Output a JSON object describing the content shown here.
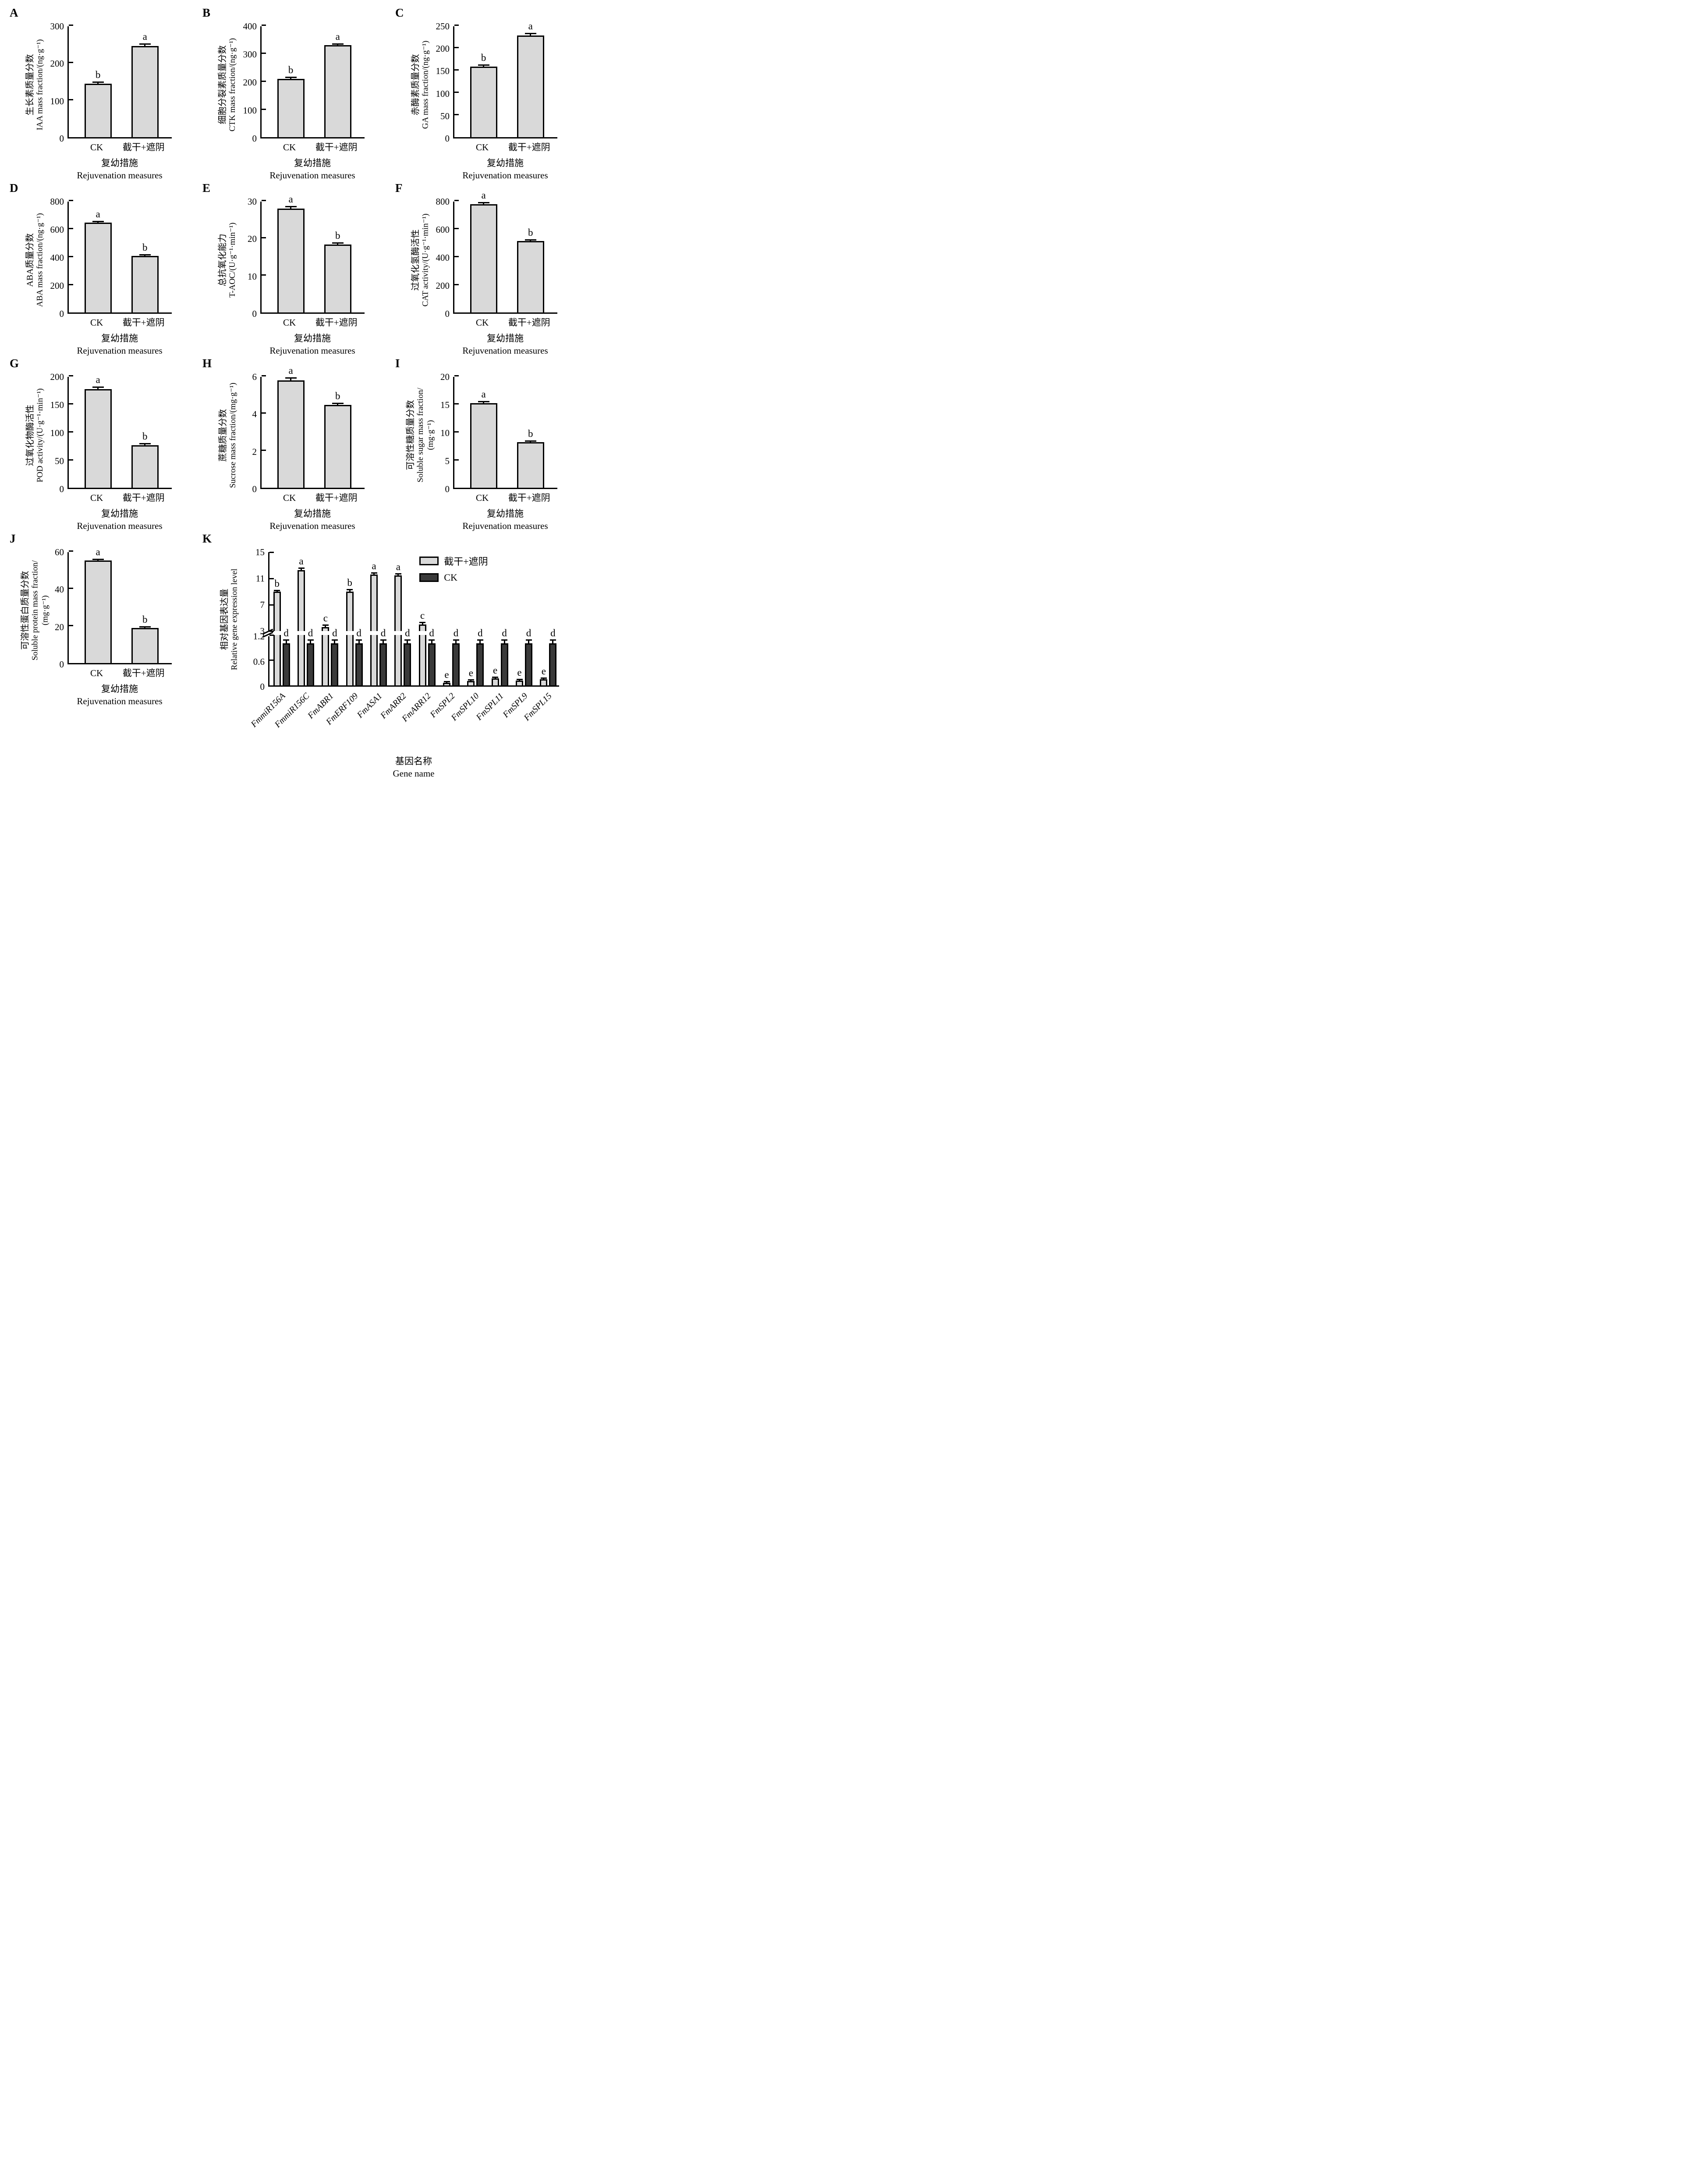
{
  "figure": {
    "background": "#ffffff",
    "bar_fill_light": "#d9d9d9",
    "bar_fill_dark": "#3a3a3a",
    "axis_color": "#000000",
    "legend": {
      "position": "top-right-of-panel-K",
      "items": [
        {
          "label": "截干+遮阴",
          "swatch": "light"
        },
        {
          "label": "CK",
          "swatch": "dark"
        }
      ]
    }
  },
  "chart_data": [
    {
      "panel": "A",
      "type": "bar",
      "ylabel_zh": "生长素质量分数",
      "ylabel_en": "IAA mass fraction/(ng·g⁻¹)",
      "categories": [
        "CK",
        "截干+遮阴"
      ],
      "values": [
        143,
        244
      ],
      "errors": [
        3,
        4
      ],
      "sig_letters": [
        "b",
        "a"
      ],
      "ylim": [
        0,
        300
      ],
      "yticks": [
        0,
        100,
        200,
        300
      ],
      "xlabel_zh": "复幼措施",
      "xlabel_en": "Rejuvenation measures",
      "grid": false
    },
    {
      "panel": "B",
      "type": "bar",
      "ylabel_zh": "细胞分裂素质量分数",
      "ylabel_en": "CTK mass fraction/(ng·g⁻¹)",
      "categories": [
        "CK",
        "截干+遮阴"
      ],
      "values": [
        208,
        328
      ],
      "errors": [
        4,
        4
      ],
      "sig_letters": [
        "b",
        "a"
      ],
      "ylim": [
        0,
        400
      ],
      "yticks": [
        0,
        100,
        200,
        300,
        400
      ],
      "xlabel_zh": "复幼措施",
      "xlabel_en": "Rejuvenation measures",
      "grid": false
    },
    {
      "panel": "C",
      "type": "bar",
      "ylabel_zh": "赤酶素质量分数",
      "ylabel_en": "GA mass fraction/(ng·g⁻¹)",
      "categories": [
        "CK",
        "截干+遮阴"
      ],
      "values": [
        157,
        227
      ],
      "errors": [
        3,
        3
      ],
      "sig_letters": [
        "b",
        "a"
      ],
      "ylim": [
        0,
        250
      ],
      "yticks": [
        0,
        50,
        100,
        150,
        200,
        250
      ],
      "xlabel_zh": "复幼措施",
      "xlabel_en": "Rejuvenation measures",
      "grid": false
    },
    {
      "panel": "D",
      "type": "bar",
      "ylabel_zh": "ABA质量分数",
      "ylabel_en": "ABA mass fraction/(ng·g⁻¹)",
      "categories": [
        "CK",
        "截干+遮阴"
      ],
      "values": [
        640,
        403
      ],
      "errors": [
        6,
        5
      ],
      "sig_letters": [
        "a",
        "b"
      ],
      "ylim": [
        0,
        800
      ],
      "yticks": [
        0,
        200,
        400,
        600,
        800
      ],
      "xlabel_zh": "复幼措施",
      "xlabel_en": "Rejuvenation measures",
      "grid": false
    },
    {
      "panel": "E",
      "type": "bar",
      "ylabel_zh": "总抗氧化能力",
      "ylabel_en": "T-AOC/(U·g⁻¹·min⁻¹)",
      "categories": [
        "CK",
        "截干+遮阴"
      ],
      "values": [
        27.8,
        18.2
      ],
      "errors": [
        0.5,
        0.3
      ],
      "sig_letters": [
        "a",
        "b"
      ],
      "ylim": [
        0,
        30
      ],
      "yticks": [
        0,
        10,
        20,
        30
      ],
      "xlabel_zh": "复幼措施",
      "xlabel_en": "Rejuvenation measures",
      "grid": false
    },
    {
      "panel": "F",
      "type": "bar",
      "ylabel_zh": "过氧化氢酶活性",
      "ylabel_en": "CAT activity/(U·g⁻¹·min⁻¹)",
      "categories": [
        "CK",
        "截干+遮阴"
      ],
      "values": [
        773,
        508
      ],
      "errors": [
        8,
        7
      ],
      "sig_letters": [
        "a",
        "b"
      ],
      "ylim": [
        0,
        800
      ],
      "yticks": [
        0,
        200,
        400,
        600,
        800
      ],
      "xlabel_zh": "复幼措施",
      "xlabel_en": "Rejuvenation measures",
      "grid": false
    },
    {
      "panel": "G",
      "type": "bar",
      "ylabel_zh": "过氧化物酶活性",
      "ylabel_en": "POD activity/(U·g⁻¹·min⁻¹)",
      "categories": [
        "CK",
        "截干+遮阴"
      ],
      "values": [
        176,
        76
      ],
      "errors": [
        3,
        2
      ],
      "sig_letters": [
        "a",
        "b"
      ],
      "ylim": [
        0,
        200
      ],
      "yticks": [
        0,
        50,
        100,
        150,
        200
      ],
      "xlabel_zh": "复幼措施",
      "xlabel_en": "Rejuvenation measures",
      "grid": false
    },
    {
      "panel": "H",
      "type": "bar",
      "ylabel_zh": "蔗糖质量分数",
      "ylabel_en": "Sucrose mass fraction/(mg·g⁻¹)",
      "categories": [
        "CK",
        "截干+遮阴"
      ],
      "values": [
        5.75,
        4.42
      ],
      "errors": [
        0.1,
        0.08
      ],
      "sig_letters": [
        "a",
        "b"
      ],
      "ylim": [
        0,
        6
      ],
      "yticks": [
        0,
        2,
        4,
        6
      ],
      "xlabel_zh": "复幼措施",
      "xlabel_en": "Rejuvenation measures",
      "grid": false
    },
    {
      "panel": "I",
      "type": "bar",
      "ylabel_zh": "可溶性糖质量分数",
      "ylabel_en": "Soluble sugar mass fraction/",
      "ylabel_en2": "(mg·g⁻¹)",
      "categories": [
        "CK",
        "截干+遮阴"
      ],
      "values": [
        15.1,
        8.1
      ],
      "errors": [
        0.25,
        0.12
      ],
      "sig_letters": [
        "a",
        "b"
      ],
      "ylim": [
        0,
        20
      ],
      "yticks": [
        0,
        5,
        10,
        15,
        20
      ],
      "xlabel_zh": "复幼措施",
      "xlabel_en": "Rejuvenation measures",
      "grid": false
    },
    {
      "panel": "J",
      "type": "bar",
      "ylabel_zh": "可溶性蛋白质量分数",
      "ylabel_en": "Soluble protein mass fraction/",
      "ylabel_en2": "(mg·g⁻¹)",
      "categories": [
        "CK",
        "截干+遮阴"
      ],
      "values": [
        54.8,
        18.8
      ],
      "errors": [
        0.5,
        0.5
      ],
      "sig_letters": [
        "a",
        "b"
      ],
      "ylim": [
        0,
        60
      ],
      "yticks": [
        0,
        20,
        40,
        60
      ],
      "xlabel_zh": "复幼措施",
      "xlabel_en": "Rejuvenation measures",
      "grid": false
    },
    {
      "panel": "K",
      "type": "grouped-bar-broken-axis",
      "ylabel_zh": "相对基因表达量",
      "ylabel_en": "Relative gene expression level",
      "categories": [
        "FmmiR156A",
        "FmmiR156C",
        "FmABR1",
        "FmERF109",
        "FmASA1",
        "FmARR2",
        "FmARR12",
        "FmSPL2",
        "FmSPL10",
        "FmSPL11",
        "FmSPL9",
        "FmSPL15"
      ],
      "series": [
        {
          "name": "截干+遮阴",
          "swatch": "light",
          "values": [
            9.0,
            12.3,
            3.6,
            9.0,
            11.6,
            11.5,
            4.0,
            0.06,
            0.1,
            0.17,
            0.11,
            0.15
          ],
          "errors": [
            0.15,
            0.25,
            0.25,
            0.3,
            0.2,
            0.2,
            0.25,
            0.02,
            0.02,
            0.02,
            0.02,
            0.02
          ],
          "sig_letters": [
            "b",
            "a",
            "c",
            "b",
            "a",
            "a",
            "c",
            "e",
            "e",
            "e",
            "e",
            "e"
          ]
        },
        {
          "name": "CK",
          "swatch": "dark",
          "values": [
            1.0,
            1.0,
            1.0,
            1.0,
            1.0,
            1.0,
            1.0,
            1.0,
            1.0,
            1.0,
            1.0,
            1.0
          ],
          "errors": [
            0.07,
            0.07,
            0.07,
            0.07,
            0.07,
            0.07,
            0.07,
            0.07,
            0.07,
            0.07,
            0.07,
            0.07
          ],
          "sig_letters": [
            "d",
            "d",
            "d",
            "d",
            "d",
            "d",
            "d",
            "d",
            "d",
            "d",
            "d",
            "d"
          ]
        }
      ],
      "axis_break": {
        "lower_range": [
          0,
          1.2
        ],
        "upper_range": [
          3,
          15
        ],
        "yticks_lower": [
          0,
          0.6,
          1.2
        ],
        "yticks_upper": [
          3,
          7,
          11,
          15
        ]
      },
      "xlabel_zh": "基因名称",
      "xlabel_en": "Gene name",
      "legend_entries": [
        "截干+遮阴",
        "CK"
      ],
      "grid": false
    }
  ]
}
